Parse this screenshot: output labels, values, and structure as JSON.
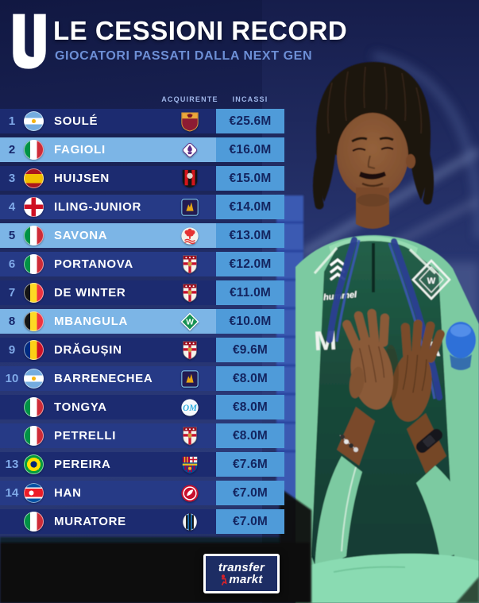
{
  "header": {
    "title": "LE CESSIONI RECORD",
    "subtitle": "GIOCATORI PASSATI DALLA NEXT GEN"
  },
  "table": {
    "col_acquirente": "ACQUIRENTE",
    "col_incassi": "INCASSI",
    "rows": [
      {
        "rank": "1",
        "flag": "argentina",
        "player": "SOULÉ",
        "club": "roma",
        "fee": "€25.6M",
        "highlight": false
      },
      {
        "rank": "2",
        "flag": "italy",
        "player": "FAGIOLI",
        "club": "fiorentina",
        "fee": "€16.0M",
        "highlight": true
      },
      {
        "rank": "3",
        "flag": "spain",
        "player": "HUIJSEN",
        "club": "bournemouth",
        "fee": "€15.0M",
        "highlight": false
      },
      {
        "rank": "4",
        "flag": "england",
        "player": "ILING-JUNIOR",
        "club": "aston-villa",
        "fee": "€14.0M",
        "highlight": false
      },
      {
        "rank": "5",
        "flag": "italy",
        "player": "SAVONA",
        "club": "nottingham-forest",
        "fee": "€13.0M",
        "highlight": true
      },
      {
        "rank": "6",
        "flag": "italy",
        "player": "PORTANOVA",
        "club": "genoa",
        "fee": "€12.0M",
        "highlight": false
      },
      {
        "rank": "7",
        "flag": "belgium",
        "player": "DE WINTER",
        "club": "genoa",
        "fee": "€11.0M",
        "highlight": false
      },
      {
        "rank": "8",
        "flag": "belgium",
        "player": "MBANGULA",
        "club": "werder-bremen",
        "fee": "€10.0M",
        "highlight": true
      },
      {
        "rank": "9",
        "flag": "romania",
        "player": "DRĂGUȘIN",
        "club": "genoa",
        "fee": "€9.6M",
        "highlight": false
      },
      {
        "rank": "10",
        "flag": "argentina",
        "player": "BARRENECHEA",
        "club": "aston-villa",
        "fee": "€8.0M",
        "highlight": false
      },
      {
        "rank": "",
        "flag": "italy",
        "player": "TONGYA",
        "club": "marseille",
        "fee": "€8.0M",
        "highlight": false
      },
      {
        "rank": "",
        "flag": "italy",
        "player": "PETRELLI",
        "club": "genoa",
        "fee": "€8.0M",
        "highlight": false
      },
      {
        "rank": "13",
        "flag": "brazil",
        "player": "PEREIRA",
        "club": "barcelona",
        "fee": "€7.6M",
        "highlight": false
      },
      {
        "rank": "14",
        "flag": "north-korea",
        "player": "HAN",
        "club": "duhail",
        "fee": "€7.0M",
        "highlight": false
      },
      {
        "rank": "",
        "flag": "italy",
        "player": "MURATORE",
        "club": "atalanta",
        "fee": "€7.0M",
        "highlight": false
      }
    ]
  },
  "photo": {
    "kit_brand": "hummel",
    "crest_letter": "W",
    "sponsor_left": "M",
    "sponsor_right": "Ä"
  },
  "footer": {
    "brand_top": "transfer",
    "brand_bottom": "markt"
  },
  "colors": {
    "row_dark_a": "#1c2b70",
    "row_dark_b": "#263a86",
    "row_light": "#7cb5e6",
    "fee_band": "#4f9bd9",
    "fee_text": "#13245f",
    "rank_on_dark": "#7fa9e8",
    "rank_on_light": "#16266b",
    "subtitle_blue": "#6d8fd6"
  },
  "chart_data": {
    "type": "table",
    "title": "LE CESSIONI RECORD",
    "subtitle": "GIOCATORI PASSATI DALLA NEXT GEN",
    "columns": [
      "rank",
      "nationality",
      "player",
      "acquirente",
      "incassi_eur_m"
    ],
    "rows": [
      [
        1,
        "Argentina",
        "SOULÉ",
        "Roma",
        25.6
      ],
      [
        2,
        "Italy",
        "FAGIOLI",
        "Fiorentina",
        16.0
      ],
      [
        3,
        "Spain",
        "HUIJSEN",
        "Bournemouth",
        15.0
      ],
      [
        4,
        "England",
        "ILING-JUNIOR",
        "Aston Villa",
        14.0
      ],
      [
        5,
        "Italy",
        "SAVONA",
        "Nottingham Forest",
        13.0
      ],
      [
        6,
        "Italy",
        "PORTANOVA",
        "Genoa",
        12.0
      ],
      [
        7,
        "Belgium",
        "DE WINTER",
        "Genoa",
        11.0
      ],
      [
        8,
        "Belgium",
        "MBANGULA",
        "Werder Bremen",
        10.0
      ],
      [
        9,
        "Romania",
        "DRĂGUȘIN",
        "Genoa",
        9.6
      ],
      [
        10,
        "Argentina",
        "BARRENECHEA",
        "Aston Villa",
        8.0
      ],
      [
        null,
        "Italy",
        "TONGYA",
        "Marseille",
        8.0
      ],
      [
        null,
        "Italy",
        "PETRELLI",
        "Genoa",
        8.0
      ],
      [
        13,
        "Brazil",
        "PEREIRA",
        "Barcelona",
        7.6
      ],
      [
        14,
        "North Korea",
        "HAN",
        "Al-Duhail",
        7.0
      ],
      [
        null,
        "Italy",
        "MURATORE",
        "Atalanta",
        7.0
      ]
    ]
  }
}
